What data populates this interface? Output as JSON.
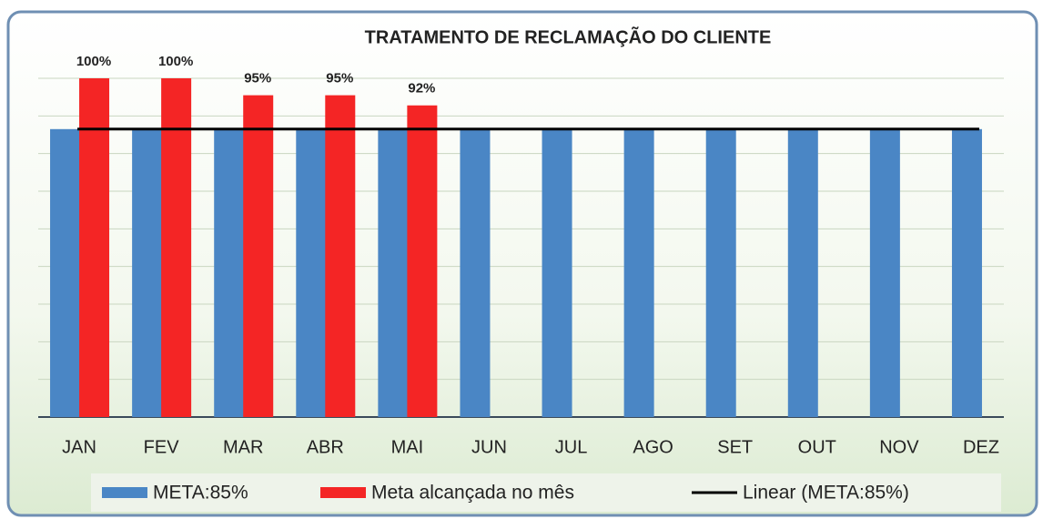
{
  "chart_data": {
    "type": "bar",
    "title": "TRATAMENTO DE RECLAMAÇÃO DO CLIENTE",
    "categories": [
      "JAN",
      "FEV",
      "MAR",
      "ABR",
      "MAI",
      "JUN",
      "JUL",
      "AGO",
      "SET",
      "OUT",
      "NOV",
      "DEZ"
    ],
    "series": [
      {
        "name": "META:85%",
        "color": "#4a86c5",
        "values": [
          85,
          85,
          85,
          85,
          85,
          85,
          85,
          85,
          85,
          85,
          85,
          85
        ]
      },
      {
        "name": "Meta alcançada no mês",
        "color": "#f42525",
        "values": [
          100,
          100,
          95,
          95,
          92,
          null,
          null,
          null,
          null,
          null,
          null,
          null
        ],
        "value_labels": [
          "100%",
          "100%",
          "95%",
          "95%",
          "92%",
          null,
          null,
          null,
          null,
          null,
          null,
          null
        ]
      },
      {
        "name": "Linear (META:85%)",
        "type": "line",
        "color": "#000000",
        "values": [
          85,
          85,
          85,
          85,
          85,
          85,
          85,
          85,
          85,
          85,
          85,
          85
        ]
      }
    ],
    "ylim": [
      0,
      100
    ],
    "legend": "bottom"
  }
}
